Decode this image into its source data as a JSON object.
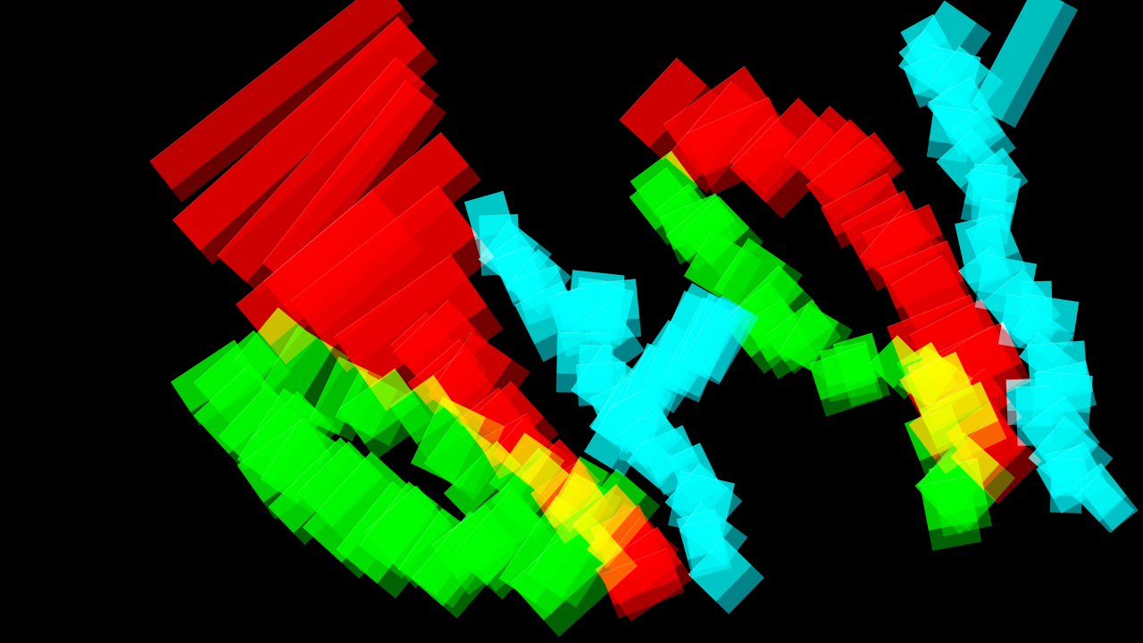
{
  "scene": {
    "background": "#000000",
    "groups": [
      {
        "name": "red-prisms",
        "base_color": "#ff0000",
        "dark_color": "#8a0000"
      },
      {
        "name": "green-prisms",
        "base_color": "#00ff00",
        "dark_color": "#007a00"
      },
      {
        "name": "cyan-prisms",
        "base_color": "#00ffff",
        "dark_color": "#00a8b0"
      }
    ]
  }
}
